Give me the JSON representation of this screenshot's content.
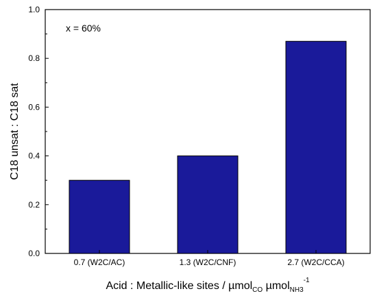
{
  "chart_data": {
    "type": "bar",
    "categories": [
      "0.7 (W2C/AC)",
      "1.3 (W2C/CNF)",
      "2.7 (W2C/CCA)"
    ],
    "values": [
      0.3,
      0.4,
      0.87
    ],
    "ylim": [
      0.0,
      1.0
    ],
    "yticks": [
      "0.0",
      "0.2",
      "0.4",
      "0.6",
      "0.8",
      "1.0"
    ],
    "ylabel": "C18 unsat : C18 sat",
    "xlabel": {
      "text": "Acid : Metallic-like sites / ",
      "unit1": "µmol",
      "sub1": "CO",
      "unit2": " µmol",
      "sub2": "NH3",
      "sup": "-1"
    },
    "annotation": "x = 60%",
    "bar_color": "#1a1a9a",
    "grid": false,
    "legend": "none"
  }
}
